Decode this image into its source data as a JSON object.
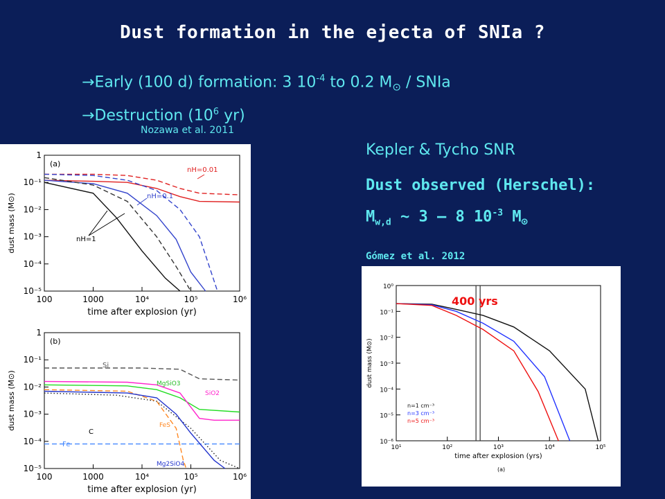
{
  "title": "Dust formation in the ejecta of SNIa ?",
  "bullets": {
    "b1_pre": "Early (100 d) formation:  3 10",
    "b1_exp": "-4",
    "b1_post": "  to  0.2 M",
    "b1_sun": "⊙",
    "b1_tail": " / SNIa",
    "b2_pre": "Destruction (10",
    "b2_exp": "6",
    "b2_post": " yr)",
    "arrow": "→"
  },
  "cite_nozawa": "Nozawa et al. 2011",
  "kepler": "Kepler & Tycho SNR",
  "dust": {
    "l1": "Dust observed (Herschel):",
    "m": "M",
    "msub": "w,d",
    "sim": " ~ 3 – 8 10",
    "exp": "-3",
    "m2": "  M",
    "sun": "⊙"
  },
  "cite_gomez": "Gómez et al. 2012",
  "chart_data": [
    {
      "type": "line",
      "panel": "(a)",
      "xscale": "log",
      "yscale": "log",
      "xlim": [
        100,
        1000000
      ],
      "ylim": [
        1e-05,
        1
      ],
      "xlabel": "time after explosion (yr)",
      "ylabel": "dust mass (M⊙)",
      "xticks": [
        "100",
        "1000",
        "10⁴",
        "10⁵",
        "10⁶"
      ],
      "yticks": [
        "1",
        "10⁻¹",
        "10⁻²",
        "10⁻³",
        "10⁻⁴",
        "10⁻⁵"
      ],
      "annotations": [
        "nH=0.01",
        "nH=0.1",
        "nH=1"
      ],
      "series": [
        {
          "color": "#e02020",
          "dash": false,
          "points": [
            [
              100,
              0.12
            ],
            [
              1000,
              0.11
            ],
            [
              5000,
              0.1
            ],
            [
              20000,
              0.06
            ],
            [
              60000,
              0.03
            ],
            [
              150000,
              0.02
            ],
            [
              1000000,
              0.019
            ]
          ]
        },
        {
          "color": "#e02020",
          "dash": true,
          "points": [
            [
              100,
              0.2
            ],
            [
              1000,
              0.2
            ],
            [
              5000,
              0.18
            ],
            [
              20000,
              0.12
            ],
            [
              60000,
              0.06
            ],
            [
              150000,
              0.04
            ],
            [
              1000000,
              0.035
            ]
          ]
        },
        {
          "color": "#3344cc",
          "dash": false,
          "points": [
            [
              100,
              0.12
            ],
            [
              1000,
              0.09
            ],
            [
              5000,
              0.04
            ],
            [
              20000,
              0.006
            ],
            [
              50000,
              0.0008
            ],
            [
              100000,
              5e-05
            ],
            [
              200000,
              1e-05
            ]
          ]
        },
        {
          "color": "#3344cc",
          "dash": true,
          "points": [
            [
              100,
              0.2
            ],
            [
              1000,
              0.18
            ],
            [
              5000,
              0.12
            ],
            [
              20000,
              0.05
            ],
            [
              60000,
              0.01
            ],
            [
              150000,
              0.001
            ],
            [
              350000,
              1e-05
            ]
          ]
        },
        {
          "color": "#111111",
          "dash": false,
          "points": [
            [
              100,
              0.1
            ],
            [
              1000,
              0.04
            ],
            [
              3000,
              0.005
            ],
            [
              10000,
              0.0003
            ],
            [
              30000,
              3e-05
            ],
            [
              60000,
              1e-05
            ]
          ]
        },
        {
          "color": "#333333",
          "dash": true,
          "points": [
            [
              100,
              0.15
            ],
            [
              1000,
              0.08
            ],
            [
              5000,
              0.02
            ],
            [
              20000,
              0.001
            ],
            [
              50000,
              8e-05
            ],
            [
              100000,
              1e-05
            ]
          ]
        }
      ]
    },
    {
      "type": "line",
      "panel": "(b)",
      "xscale": "log",
      "yscale": "log",
      "xlim": [
        100,
        1000000
      ],
      "ylim": [
        1e-05,
        1
      ],
      "xlabel": "time after explosion (yr)",
      "ylabel": "dust mass (M⊙)",
      "xticks": [
        "100",
        "1000",
        "10⁴",
        "10⁵",
        "10⁶"
      ],
      "yticks": [
        "1",
        "10⁻¹",
        "10⁻²",
        "10⁻³",
        "10⁻⁴",
        "10⁻⁵"
      ],
      "annotations": [
        "Si",
        "MgSiO3",
        "SiO2",
        "C",
        "FeS",
        "Fe",
        "Mg2SiO4"
      ],
      "series": [
        {
          "name": "Si",
          "color": "#555555",
          "dash": true,
          "points": [
            [
              100,
              0.05
            ],
            [
              10000,
              0.05
            ],
            [
              60000,
              0.045
            ],
            [
              150000,
              0.02
            ],
            [
              1000000,
              0.018
            ]
          ]
        },
        {
          "name": "MgSiO3",
          "color": "#22dd22",
          "dash": false,
          "points": [
            [
              100,
              0.012
            ],
            [
              5000,
              0.011
            ],
            [
              20000,
              0.008
            ],
            [
              60000,
              0.004
            ],
            [
              150000,
              0.0015
            ],
            [
              1000000,
              0.0012
            ]
          ]
        },
        {
          "name": "SiO2",
          "color": "#ff22cc",
          "dash": false,
          "points": [
            [
              100,
              0.016
            ],
            [
              5000,
              0.015
            ],
            [
              20000,
              0.012
            ],
            [
              60000,
              0.006
            ],
            [
              150000,
              0.0007
            ],
            [
              300000,
              0.0006
            ],
            [
              1000000,
              0.0006
            ]
          ]
        },
        {
          "name": "C",
          "color": "#222222",
          "dash": "dot",
          "points": [
            [
              100,
              0.006
            ],
            [
              3000,
              0.005
            ],
            [
              20000,
              0.003
            ],
            [
              100000,
              0.0003
            ],
            [
              400000,
              2e-05
            ],
            [
              1000000,
              1e-05
            ]
          ]
        },
        {
          "name": "FeS",
          "color": "#ff8822",
          "dash": true,
          "points": [
            [
              100,
              0.008
            ],
            [
              5000,
              0.007
            ],
            [
              20000,
              0.003
            ],
            [
              50000,
              0.0003
            ],
            [
              70000,
              2e-05
            ],
            [
              80000,
              1e-05
            ]
          ]
        },
        {
          "name": "Fe",
          "color": "#4488ff",
          "dash": true,
          "points": [
            [
              100,
              8e-05
            ],
            [
              10000,
              8e-05
            ],
            [
              1000000,
              8e-05
            ]
          ]
        },
        {
          "name": "Mg2SiO4",
          "color": "#2233cc",
          "dash": false,
          "points": [
            [
              100,
              0.007
            ],
            [
              5000,
              0.006
            ],
            [
              20000,
              0.004
            ],
            [
              50000,
              0.001
            ],
            [
              100000,
              0.0002
            ],
            [
              300000,
              2e-05
            ],
            [
              500000,
              1e-05
            ]
          ]
        }
      ]
    },
    {
      "type": "line",
      "panel": "(a)",
      "xscale": "log",
      "yscale": "log",
      "xlim": [
        10,
        100000
      ],
      "ylim": [
        1e-06,
        1
      ],
      "xlabel": "time after explosion (yrs)",
      "ylabel": "dust mass (M⊙)",
      "xticks": [
        "10¹",
        "10²",
        "10³",
        "10⁴",
        "10⁵"
      ],
      "yticks": [
        "10⁰",
        "10⁻¹",
        "10⁻²",
        "10⁻³",
        "10⁻⁴",
        "10⁻⁵",
        "10⁻⁶"
      ],
      "annotations": [
        "400 yrs"
      ],
      "vline": 400,
      "series": [
        {
          "name": "n=1 cm⁻³",
          "color": "#111111",
          "points": [
            [
              10,
              0.2
            ],
            [
              50,
              0.19
            ],
            [
              150,
              0.12
            ],
            [
              500,
              0.07
            ],
            [
              2000,
              0.025
            ],
            [
              10000,
              0.003
            ],
            [
              50000,
              0.0001
            ],
            [
              90000,
              1e-06
            ]
          ]
        },
        {
          "name": "n=3 cm⁻³",
          "color": "#2233ff",
          "points": [
            [
              10,
              0.2
            ],
            [
              50,
              0.18
            ],
            [
              150,
              0.1
            ],
            [
              500,
              0.035
            ],
            [
              2000,
              0.007
            ],
            [
              8000,
              0.0003
            ],
            [
              25000,
              1e-06
            ]
          ]
        },
        {
          "name": "n=5 cm⁻³",
          "color": "#ee1111",
          "points": [
            [
              10,
              0.2
            ],
            [
              50,
              0.17
            ],
            [
              150,
              0.07
            ],
            [
              500,
              0.02
            ],
            [
              2000,
              0.003
            ],
            [
              6000,
              8e-05
            ],
            [
              15000,
              1e-06
            ]
          ]
        }
      ]
    }
  ]
}
